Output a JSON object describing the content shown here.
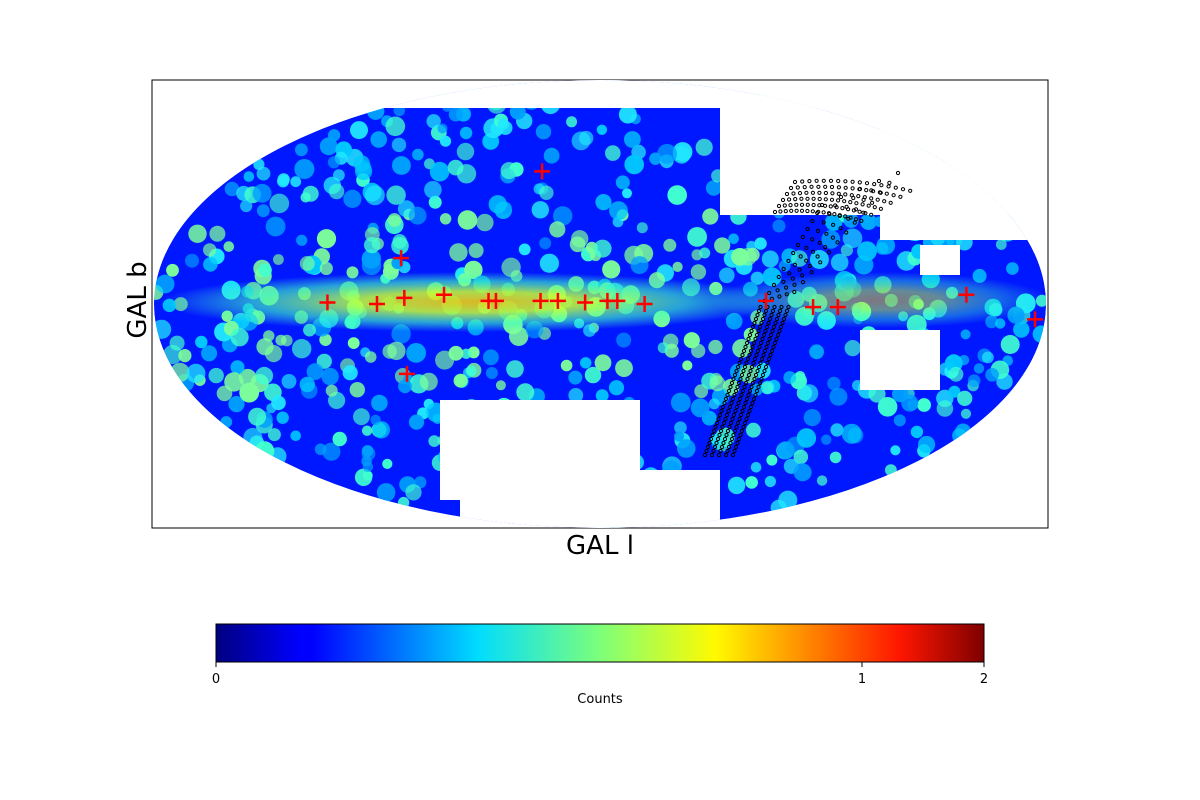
{
  "chart_data": {
    "type": "heatmap",
    "projection": "mollweide",
    "coordinate_system": "galactic",
    "title": "",
    "xlabel": "GAL l",
    "ylabel": "GAL b",
    "colormap": "jet",
    "colorbar": {
      "label": "Counts",
      "ticks": [
        "0",
        "1",
        "2"
      ],
      "tick_values": [
        0,
        1,
        2
      ],
      "orientation": "horizontal",
      "placement": "bottom"
    },
    "colors": {
      "markers": "#ff0000",
      "track": "#000000",
      "missing": "#ffffff"
    },
    "sources": [
      {
        "l": 110,
        "b": 0.5
      },
      {
        "l": 90,
        "b": 0
      },
      {
        "l": 79,
        "b": 2
      },
      {
        "l": 63,
        "b": 3
      },
      {
        "l": 45,
        "b": 1
      },
      {
        "l": 42,
        "b": 1
      },
      {
        "l": 24,
        "b": 1
      },
      {
        "l": 17,
        "b": 1
      },
      {
        "l": 6,
        "b": 0.5
      },
      {
        "l": 357,
        "b": 1
      },
      {
        "l": 353,
        "b": 1
      },
      {
        "l": 342,
        "b": 0
      },
      {
        "l": 293,
        "b": 1
      },
      {
        "l": 274,
        "b": -1
      },
      {
        "l": 264,
        "b": -1
      },
      {
        "l": 212,
        "b": 3
      },
      {
        "l": 184,
        "b": -5
      },
      {
        "l": 82,
        "b": 15
      },
      {
        "l": 29,
        "b": 45
      },
      {
        "l": 82,
        "b": -23
      }
    ],
    "track": {
      "name": "",
      "marker": "open-circle",
      "description": "curved scan band of small circles"
    }
  }
}
